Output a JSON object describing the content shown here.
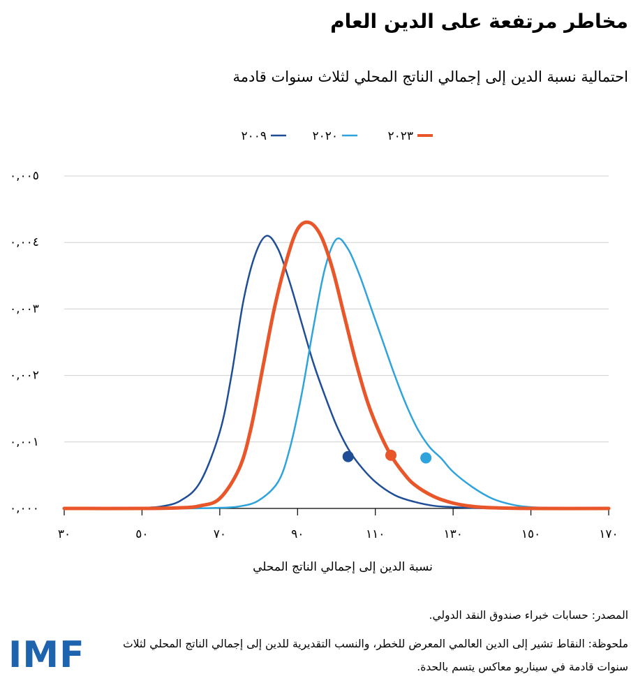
{
  "title": "مخاطر مرتفعة على الدين العام",
  "subtitle": "احتمالية نسبة الدين إلى إجمالي الناتج المحلي لثلاث سنوات قادمة",
  "source_text": "المصدر: حسابات خبراء صندوق النقد الدولي.",
  "note_text": "ملحوظة: النقاط تشير إلى الدين العالمي المعرض للخطر، والنسب التقديرية للدين إلى إجمالي الناتج المحلي لثلاث سنوات قادمة في سيناريو معاكس يتسم بالحدة.",
  "logo_text": "IMF",
  "chart_data": {
    "type": "line",
    "xlabel": "نسبة الدين إلى إجمالي الناتج المحلي",
    "ylabel": "",
    "xlim": [
      30,
      170
    ],
    "ylim": [
      0,
      0.005
    ],
    "x_ticks": [
      30,
      50,
      70,
      90,
      110,
      130,
      150,
      170
    ],
    "x_tick_labels": [
      "٣٠",
      "٥٠",
      "٧٠",
      "٩٠",
      "١١٠",
      "١٣٠",
      "١٥٠",
      "١٧٠"
    ],
    "y_ticks": [
      0,
      0.001,
      0.002,
      0.003,
      0.004,
      0.005
    ],
    "y_tick_labels": [
      "٠,٠٠٠",
      "٠,٠٠١",
      "٠,٠٠٢",
      "٠,٠٠٣",
      "٠,٠٠٤",
      "٠,٠٠٥"
    ],
    "grid": true,
    "legend_position": "top",
    "series": [
      {
        "name": "٢٠٠٩",
        "color": "#1f4e96",
        "line_width": "normal",
        "x": [
          30,
          40,
          50,
          55,
          60,
          65,
          70,
          73,
          76,
          79,
          82,
          85,
          88,
          91,
          94,
          97,
          100,
          103,
          106,
          110,
          115,
          120,
          125,
          130,
          140,
          150,
          170
        ],
        "y": [
          0,
          0,
          1e-05,
          3e-05,
          0.00012,
          0.0004,
          0.00115,
          0.002,
          0.0031,
          0.0038,
          0.0041,
          0.0039,
          0.0034,
          0.0028,
          0.0022,
          0.0017,
          0.00125,
          0.0009,
          0.00065,
          0.0004,
          0.0002,
          0.0001,
          4e-05,
          2e-05,
          0,
          0,
          0
        ]
      },
      {
        "name": "٢٠٢٠",
        "color": "#2ea3dc",
        "line_width": "normal",
        "x": [
          30,
          60,
          70,
          75,
          80,
          85,
          88,
          91,
          94,
          97,
          100,
          103,
          106,
          109,
          112,
          115,
          118,
          121,
          124,
          127,
          130,
          135,
          140,
          145,
          150,
          160,
          170
        ],
        "y": [
          0,
          0,
          1e-05,
          3e-05,
          0.00012,
          0.0004,
          0.0009,
          0.0017,
          0.0027,
          0.0036,
          0.00405,
          0.0039,
          0.0035,
          0.003,
          0.0025,
          0.002,
          0.00155,
          0.00118,
          0.00092,
          0.00075,
          0.00055,
          0.00032,
          0.00015,
          6e-05,
          2e-05,
          0,
          0
        ]
      },
      {
        "name": "٢٠٢٣",
        "color": "#e8562a",
        "line_width": "thick",
        "x": [
          30,
          50,
          60,
          65,
          70,
          75,
          78,
          81,
          84,
          87,
          90,
          93,
          96,
          99,
          102,
          105,
          108,
          111,
          114,
          117,
          120,
          125,
          130,
          135,
          140,
          150,
          170
        ],
        "y": [
          0,
          0,
          1e-05,
          4e-05,
          0.00015,
          0.0006,
          0.0012,
          0.0021,
          0.003,
          0.0037,
          0.0042,
          0.0043,
          0.0041,
          0.0036,
          0.0029,
          0.0022,
          0.0016,
          0.00115,
          0.0008,
          0.00055,
          0.00036,
          0.00018,
          8e-05,
          3e-05,
          1e-05,
          0,
          0
        ]
      }
    ],
    "markers": [
      {
        "series": "٢٠٠٩",
        "x": 103,
        "y": 0.00078
      },
      {
        "series": "٢٠٢٣",
        "x": 114,
        "y": 0.0008
      },
      {
        "series": "٢٠٢٠",
        "x": 123,
        "y": 0.00076
      }
    ]
  }
}
